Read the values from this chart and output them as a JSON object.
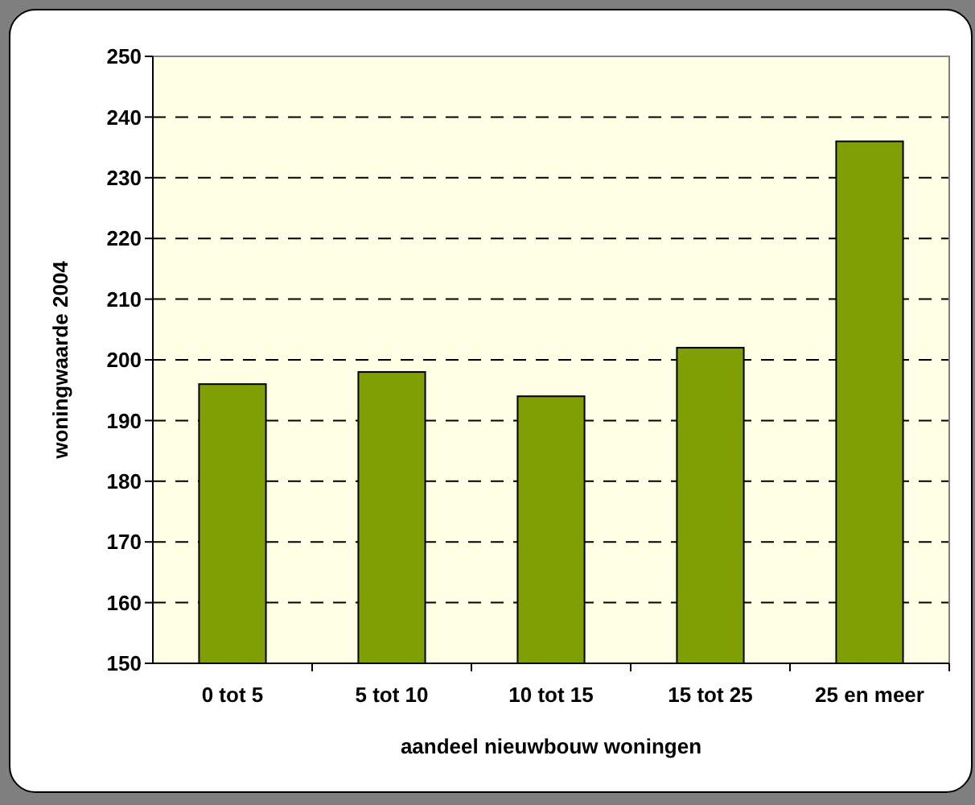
{
  "chart_data": {
    "type": "bar",
    "xlabel": "aandeel nieuwbouw woningen",
    "ylabel": "woningwaarde 2004",
    "categories": [
      "0 tot 5",
      "5 tot 10",
      "10 tot 15",
      "15 tot 25",
      "25 en meer"
    ],
    "values": [
      196,
      198,
      194,
      202,
      236
    ],
    "color": "#7f9f05",
    "ylim": [
      150,
      250
    ],
    "yticks": [
      150,
      160,
      170,
      180,
      190,
      200,
      210,
      220,
      230,
      240,
      250
    ],
    "grid": "y"
  }
}
